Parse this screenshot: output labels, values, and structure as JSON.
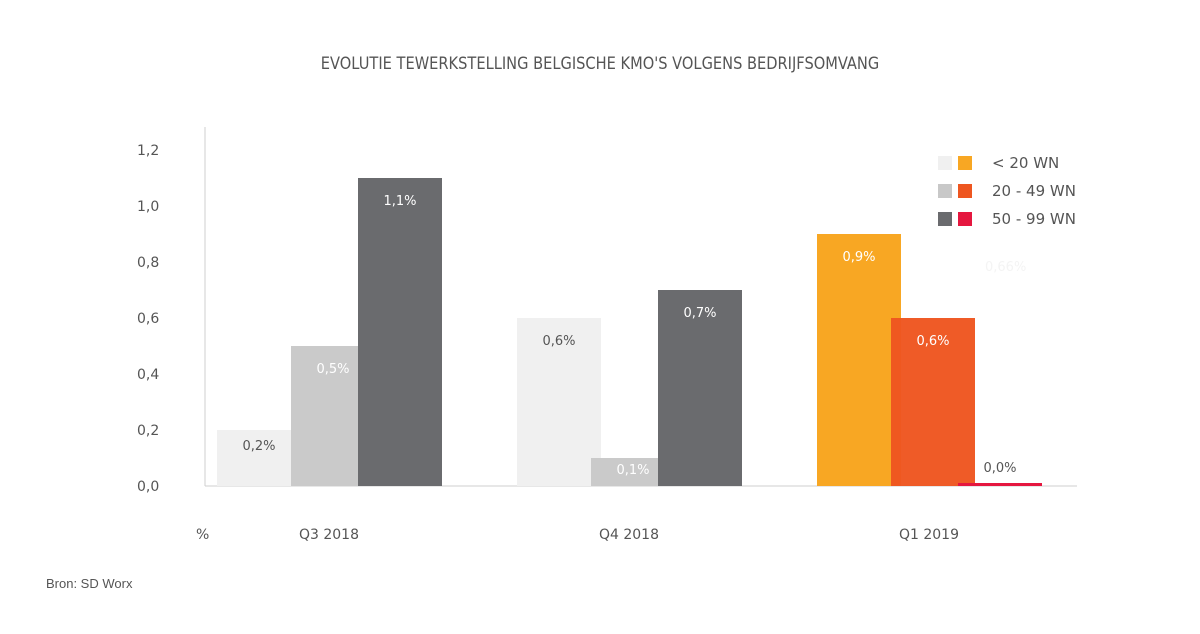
{
  "chart_data": {
    "type": "bar",
    "title": "EVOLUTIE TEWERKSTELLING BELGISCHE KMO'S VOLGENS BEDRIJFSOMVANG",
    "ylabel": "%",
    "xlabel": "",
    "ylim": [
      0,
      1.2
    ],
    "yticks": [
      "0,0",
      "0,2",
      "0,4",
      "0,6",
      "0,8",
      "1,0",
      "1,2"
    ],
    "grid": false,
    "legend_position": "top-right",
    "categories": [
      "Q3 2018",
      "Q4 2018",
      "Q1 2019"
    ],
    "series": [
      {
        "name": "< 20 WN",
        "values": [
          0.2,
          0.6,
          0.9
        ],
        "labels": [
          "0,2%",
          "0,6%",
          "0,9%"
        ]
      },
      {
        "name": "20 - 49 WN",
        "values": [
          0.5,
          0.1,
          0.6
        ],
        "labels": [
          "0,5%",
          "0,1%",
          "0,6%"
        ]
      },
      {
        "name": "50 - 99 WN",
        "values": [
          1.1,
          0.7,
          0.01
        ],
        "labels": [
          "1,1%",
          "0,7%",
          "0,0%"
        ]
      }
    ],
    "colors": {
      "Q3 2018": [
        "#f0f0f0",
        "#c8c8c8",
        "#6a6b6e"
      ],
      "Q4 2018": [
        "#f0f0f0",
        "#c8c8c8",
        "#6a6b6e"
      ],
      "Q1 2019": [
        "#f8a723",
        "#ee5620",
        "#e5173f"
      ]
    },
    "legend_colors": {
      "grey": [
        "#f0f0f0",
        "#c8c8c8",
        "#6a6b6e"
      ],
      "orange": [
        "#f8a723",
        "#ee5620",
        "#e5173f"
      ]
    },
    "faint_annotation": "0,66%"
  },
  "source": "Bron: SD Worx"
}
